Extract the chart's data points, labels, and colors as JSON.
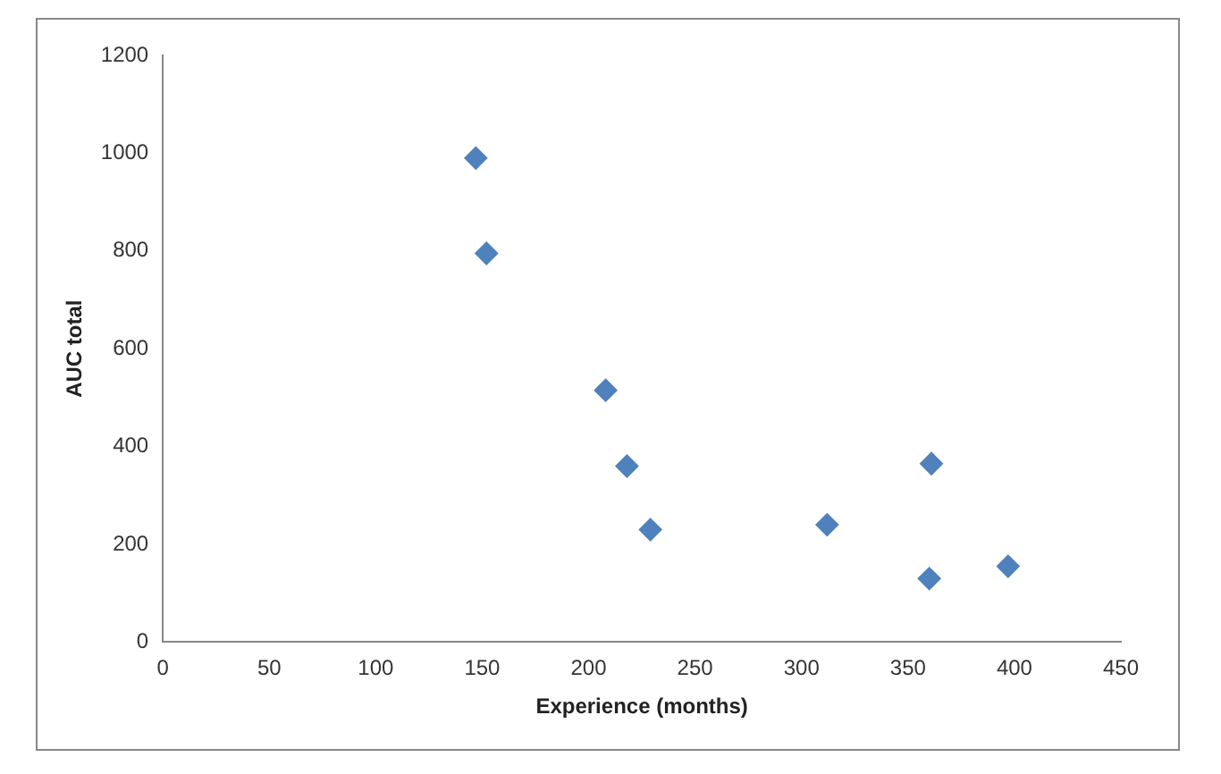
{
  "chart_data": {
    "type": "scatter",
    "xlabel": "Experience (months)",
    "ylabel": "AUC total",
    "x": [
      147,
      152,
      208,
      218,
      229,
      312,
      361,
      360,
      397
    ],
    "values": [
      990,
      795,
      515,
      360,
      230,
      240,
      365,
      130,
      155
    ],
    "color": "#4f81bd",
    "marker": "diamond",
    "grid": false,
    "legend": false,
    "xlim": [
      0,
      450
    ],
    "xticks": [
      0,
      50,
      100,
      150,
      200,
      250,
      300,
      350,
      400,
      450
    ],
    "ylim": [
      0,
      1200
    ],
    "yticks": [
      0,
      200,
      400,
      600,
      800,
      1000,
      1200
    ]
  }
}
